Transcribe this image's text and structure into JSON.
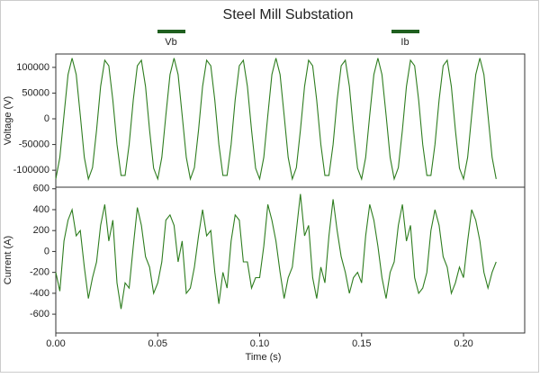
{
  "chart_data": [
    {
      "type": "line",
      "title": "Steel Mill Substation",
      "ylabel": "Voltage (V)",
      "x": [
        0,
        0.002,
        0.004,
        0.006,
        0.008,
        0.01,
        0.012,
        0.014,
        0.016,
        0.018,
        0.02,
        0.022,
        0.024,
        0.026,
        0.028,
        0.03,
        0.032,
        0.034,
        0.036,
        0.038,
        0.04,
        0.042,
        0.044,
        0.046,
        0.048,
        0.05,
        0.052,
        0.054,
        0.056,
        0.058,
        0.06,
        0.062,
        0.064,
        0.066,
        0.068,
        0.07,
        0.072,
        0.074,
        0.076,
        0.078,
        0.08,
        0.082,
        0.084,
        0.086,
        0.088,
        0.09,
        0.092,
        0.094,
        0.096,
        0.098,
        0.1,
        0.102,
        0.104,
        0.106,
        0.108,
        0.11,
        0.112,
        0.114,
        0.116,
        0.118,
        0.12,
        0.122,
        0.124,
        0.126,
        0.128,
        0.13,
        0.132,
        0.134,
        0.136,
        0.138,
        0.14,
        0.142,
        0.144,
        0.146,
        0.148,
        0.15,
        0.152,
        0.154,
        0.156,
        0.158,
        0.16,
        0.162,
        0.164,
        0.166,
        0.168,
        0.17,
        0.172,
        0.174,
        0.176,
        0.178,
        0.18,
        0.182,
        0.184,
        0.186,
        0.188,
        0.19,
        0.192,
        0.194,
        0.196,
        0.198,
        0.2,
        0.202,
        0.204,
        0.206,
        0.208,
        0.21,
        0.212,
        0.214,
        0.216
      ],
      "series": [
        {
          "name": "Vb",
          "color": "#2e7d1f",
          "values": [
            -117000,
            -75000,
            7000,
            86000,
            118000,
            86000,
            7000,
            -75000,
            -117000,
            -95000,
            -22000,
            63000,
            114000,
            103000,
            36000,
            -50000,
            -110000,
            -110000,
            -50000,
            37000,
            103000,
            114000,
            63000,
            -22000,
            -96000,
            -117000,
            -75000,
            7000,
            86000,
            118000,
            86000,
            7000,
            -75000,
            -117000,
            -95000,
            -22000,
            63000,
            114000,
            103000,
            36000,
            -50000,
            -110000,
            -110000,
            -50000,
            37000,
            103000,
            114000,
            63000,
            -22000,
            -96000,
            -117000,
            -75000,
            7000,
            86000,
            118000,
            86000,
            7000,
            -75000,
            -117000,
            -95000,
            -22000,
            63000,
            114000,
            103000,
            36000,
            -50000,
            -110000,
            -110000,
            -50000,
            37000,
            103000,
            114000,
            63000,
            -22000,
            -96000,
            -117000,
            -75000,
            7000,
            86000,
            118000,
            86000,
            7000,
            -75000,
            -117000,
            -95000,
            -22000,
            63000,
            114000,
            103000,
            36000,
            -50000,
            -110000,
            -110000,
            -50000,
            37000,
            103000,
            114000,
            63000,
            -22000,
            -96000,
            -117000,
            -75000,
            7000,
            86000,
            118000,
            86000,
            7000,
            -75000,
            -117000
          ]
        }
      ],
      "xlim": [
        0,
        0.23
      ],
      "ylim": [
        -133000,
        126000
      ],
      "yticks": [
        -100000,
        -50000,
        0,
        50000,
        100000
      ]
    },
    {
      "type": "line",
      "ylabel": "Current (A)",
      "xlabel": "Time (s)",
      "x": [
        0,
        0.002,
        0.004,
        0.006,
        0.008,
        0.01,
        0.012,
        0.014,
        0.016,
        0.018,
        0.02,
        0.022,
        0.024,
        0.026,
        0.028,
        0.03,
        0.032,
        0.034,
        0.036,
        0.038,
        0.04,
        0.042,
        0.044,
        0.046,
        0.048,
        0.05,
        0.052,
        0.054,
        0.056,
        0.058,
        0.06,
        0.062,
        0.064,
        0.066,
        0.068,
        0.07,
        0.072,
        0.074,
        0.076,
        0.078,
        0.08,
        0.082,
        0.084,
        0.086,
        0.088,
        0.09,
        0.092,
        0.094,
        0.096,
        0.098,
        0.1,
        0.102,
        0.104,
        0.106,
        0.108,
        0.11,
        0.112,
        0.114,
        0.116,
        0.118,
        0.12,
        0.122,
        0.124,
        0.126,
        0.128,
        0.13,
        0.132,
        0.134,
        0.136,
        0.138,
        0.14,
        0.142,
        0.144,
        0.146,
        0.148,
        0.15,
        0.152,
        0.154,
        0.156,
        0.158,
        0.16,
        0.162,
        0.164,
        0.166,
        0.168,
        0.17,
        0.172,
        0.174,
        0.176,
        0.178,
        0.18,
        0.182,
        0.184,
        0.186,
        0.188,
        0.19,
        0.192,
        0.194,
        0.196,
        0.198,
        0.2,
        0.202,
        0.204,
        0.206,
        0.208,
        0.21,
        0.212,
        0.214,
        0.216
      ],
      "series": [
        {
          "name": "Ib",
          "color": "#2e7d1f",
          "values": [
            -200,
            -380,
            100,
            300,
            400,
            150,
            200,
            -150,
            -450,
            -250,
            -100,
            250,
            450,
            100,
            300,
            -300,
            -550,
            -300,
            -350,
            50,
            420,
            250,
            -50,
            -150,
            -400,
            -300,
            -100,
            300,
            350,
            250,
            -100,
            100,
            -400,
            -350,
            -150,
            150,
            400,
            150,
            200,
            -200,
            -500,
            -200,
            -350,
            100,
            350,
            300,
            -100,
            -100,
            -350,
            -250,
            -250,
            50,
            450,
            300,
            100,
            -200,
            -450,
            -250,
            -150,
            200,
            550,
            150,
            250,
            -250,
            -450,
            -150,
            -300,
            150,
            500,
            200,
            -50,
            -200,
            -400,
            -250,
            -200,
            -300,
            150,
            450,
            300,
            50,
            -250,
            -450,
            -200,
            -100,
            250,
            450,
            100,
            250,
            -250,
            -400,
            -350,
            -200,
            200,
            400,
            250,
            -50,
            -150,
            -400,
            -300,
            -150,
            -250,
            100,
            400,
            300,
            100,
            -200,
            -350,
            -200,
            -100
          ]
        }
      ],
      "xlim": [
        0,
        0.23
      ],
      "ylim": [
        -780,
        615
      ],
      "yticks": [
        -600,
        -400,
        -200,
        0,
        200,
        400,
        600
      ],
      "xticks": [
        {
          "value": 0,
          "label": "0.00"
        },
        0.05,
        {
          "value": 0.1,
          "label": "0.10"
        },
        0.15,
        {
          "value": 0.2,
          "label": "0.20"
        }
      ]
    }
  ]
}
